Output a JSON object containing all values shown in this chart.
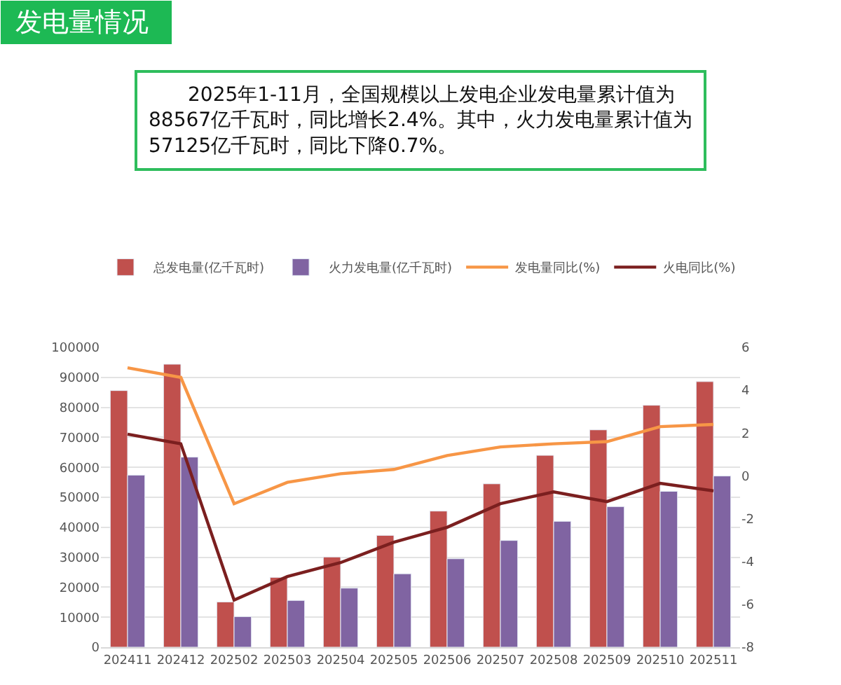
{
  "chart_data": {
    "type": "bar",
    "title": "发电量情况",
    "subtitle": "2025年1-11月，全国规模以上发电企业发电量累计值为88567亿千瓦时，同比增长2.4%。其中，火力发电量累计值为57125亿千瓦时，同比下降0.7%。",
    "categories": [
      "202411",
      "202412",
      "202502",
      "202503",
      "202504",
      "202505",
      "202506",
      "202507",
      "202508",
      "202509",
      "202510",
      "202511"
    ],
    "series": [
      {
        "name": "总发电量(亿千瓦时)",
        "color": "#c0504d",
        "values": [
          85600,
          94400,
          15100,
          23300,
          30100,
          37300,
          45400,
          54500,
          64000,
          72500,
          80700,
          88600
        ]
      },
      {
        "name": "火力发电量(亿千瓦时)",
        "color": "#8064a2",
        "values": [
          57400,
          63400,
          10200,
          15600,
          19700,
          24500,
          29500,
          35600,
          42000,
          46900,
          52000,
          57100
        ]
      },
      {
        "name": "发电量同比(%)",
        "type": "line",
        "axis": "y2",
        "color": "#f79646",
        "values": [
          5.05,
          4.6,
          -1.3,
          -0.3,
          0.1,
          0.3,
          0.95,
          1.35,
          1.5,
          1.6,
          2.3,
          2.4
        ]
      },
      {
        "name": "火电同比(%)",
        "type": "line",
        "axis": "y2",
        "color": "#7b1f1f",
        "values": [
          1.95,
          1.5,
          -5.8,
          -4.7,
          -4.05,
          -3.1,
          -2.4,
          -1.3,
          -0.75,
          -1.2,
          -0.35,
          -0.7
        ]
      }
    ],
    "ylim": [
      0,
      100000
    ],
    "yticks": [
      0,
      10000,
      20000,
      30000,
      40000,
      50000,
      60000,
      70000,
      80000,
      90000,
      100000
    ],
    "y2lim": [
      -8,
      6
    ],
    "y2ticks": [
      -8,
      -6,
      -4,
      -2,
      0,
      2,
      4,
      6
    ],
    "grid": "y",
    "legend": "top",
    "marker": "none",
    "line_style": "solid"
  }
}
